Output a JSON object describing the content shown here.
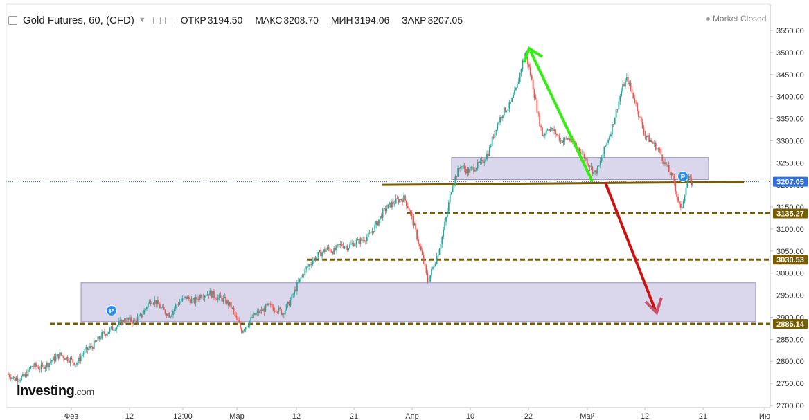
{
  "header": {
    "title": "Gold Futures, 60, (CFD)",
    "open_label": "ОТКР",
    "open_value": "3194.50",
    "high_label": "МАКС",
    "high_value": "3208.70",
    "low_label": "МИН",
    "low_value": "3194.06",
    "close_label": "ЗАКР",
    "close_value": "3207.05"
  },
  "status": {
    "market": "Market Closed"
  },
  "logo": {
    "name": "Investing",
    "suffix": ".com"
  },
  "price_tags": {
    "current": "3207.05",
    "level_3135": "3135.27",
    "level_3030": "3030.53",
    "level_2885": "2885.14"
  },
  "markers": {
    "pivot": "P"
  },
  "colors": {
    "up": "#26a69a",
    "down": "#ef5350",
    "zone": "#d7d2ea",
    "level": "#7a5c00",
    "arrow_up": "#33ee11",
    "arrow_down": "#cc1111",
    "tag_bg": "#7a5c00",
    "current_tag_bg": "#2f6fd6"
  },
  "chart_data": {
    "type": "candlestick",
    "yaxis_ticks": [
      "3550.00",
      "3500.00",
      "3450.00",
      "3400.00",
      "3350.00",
      "3300.00",
      "3250.00",
      "3200.00",
      "3150.00",
      "3100.00",
      "3050.00",
      "3000.00",
      "2950.00",
      "2900.00",
      "2850.00",
      "2800.00",
      "2750.00",
      "2700.00"
    ],
    "ylim": [
      2700,
      3550
    ],
    "xaxis_ticks": [
      "Фев",
      "12",
      "12:00",
      "Мар",
      "12",
      "21",
      "Апр",
      "10",
      "22",
      "Май",
      "12",
      "21",
      "Ию"
    ],
    "price_path": [
      [
        0,
        2770
      ],
      [
        0.3,
        2760
      ],
      [
        0.7,
        2765
      ],
      [
        1.0,
        2790
      ],
      [
        1.4,
        2785
      ],
      [
        1.8,
        2800
      ],
      [
        2.2,
        2815
      ],
      [
        2.6,
        2805
      ],
      [
        2.9,
        2795
      ],
      [
        3.2,
        2820
      ],
      [
        3.6,
        2835
      ],
      [
        4.0,
        2860
      ],
      [
        4.3,
        2870
      ],
      [
        4.6,
        2880
      ],
      [
        5.0,
        2895
      ],
      [
        5.4,
        2890
      ],
      [
        5.7,
        2905
      ],
      [
        5.9,
        2925
      ],
      [
        6.1,
        2940
      ],
      [
        6.3,
        2935
      ],
      [
        6.6,
        2915
      ],
      [
        6.9,
        2905
      ],
      [
        7.2,
        2930
      ],
      [
        7.6,
        2945
      ],
      [
        7.9,
        2935
      ],
      [
        8.2,
        2950
      ],
      [
        8.6,
        2955
      ],
      [
        8.9,
        2945
      ],
      [
        9.2,
        2940
      ],
      [
        9.5,
        2925
      ],
      [
        9.7,
        2900
      ],
      [
        9.95,
        2870
      ],
      [
        10.2,
        2885
      ],
      [
        10.5,
        2905
      ],
      [
        10.8,
        2915
      ],
      [
        11.1,
        2925
      ],
      [
        11.4,
        2920
      ],
      [
        11.7,
        2910
      ],
      [
        11.9,
        2925
      ],
      [
        12.1,
        2945
      ],
      [
        12.3,
        2970
      ],
      [
        12.5,
        2990
      ],
      [
        12.7,
        3010
      ],
      [
        13.0,
        3030
      ],
      [
        13.3,
        3045
      ],
      [
        13.6,
        3055
      ],
      [
        13.9,
        3050
      ],
      [
        14.2,
        3065
      ],
      [
        14.5,
        3060
      ],
      [
        14.8,
        3070
      ],
      [
        15.1,
        3075
      ],
      [
        15.4,
        3085
      ],
      [
        15.7,
        3110
      ],
      [
        16.0,
        3140
      ],
      [
        16.3,
        3155
      ],
      [
        16.6,
        3165
      ],
      [
        16.9,
        3170
      ],
      [
        17.1,
        3145
      ],
      [
        17.3,
        3110
      ],
      [
        17.5,
        3070
      ],
      [
        17.7,
        3030
      ],
      [
        17.9,
        2980
      ],
      [
        18.1,
        3010
      ],
      [
        18.3,
        3040
      ],
      [
        18.5,
        3080
      ],
      [
        18.7,
        3130
      ],
      [
        18.9,
        3190
      ],
      [
        19.1,
        3220
      ],
      [
        19.3,
        3245
      ],
      [
        19.6,
        3230
      ],
      [
        19.9,
        3240
      ],
      [
        20.2,
        3250
      ],
      [
        20.5,
        3275
      ],
      [
        20.8,
        3330
      ],
      [
        21.1,
        3365
      ],
      [
        21.4,
        3380
      ],
      [
        21.7,
        3420
      ],
      [
        21.9,
        3470
      ],
      [
        22.05,
        3500
      ],
      [
        22.2,
        3470
      ],
      [
        22.4,
        3420
      ],
      [
        22.6,
        3360
      ],
      [
        22.8,
        3310
      ],
      [
        23.0,
        3330
      ],
      [
        23.3,
        3320
      ],
      [
        23.6,
        3300
      ],
      [
        23.9,
        3305
      ],
      [
        24.2,
        3290
      ],
      [
        24.5,
        3270
      ],
      [
        24.8,
        3245
      ],
      [
        25.0,
        3225
      ],
      [
        25.2,
        3240
      ],
      [
        25.4,
        3275
      ],
      [
        25.7,
        3320
      ],
      [
        26.0,
        3380
      ],
      [
        26.2,
        3420
      ],
      [
        26.4,
        3440
      ],
      [
        26.6,
        3410
      ],
      [
        26.8,
        3380
      ],
      [
        27.0,
        3340
      ],
      [
        27.2,
        3310
      ],
      [
        27.5,
        3295
      ],
      [
        27.8,
        3275
      ],
      [
        28.0,
        3250
      ],
      [
        28.2,
        3230
      ],
      [
        28.4,
        3210
      ],
      [
        28.55,
        3170
      ],
      [
        28.7,
        3140
      ],
      [
        28.85,
        3180
      ],
      [
        29.0,
        3215
      ],
      [
        29.2,
        3200
      ]
    ],
    "horizontal_levels": [
      "3207.05",
      "3135.27",
      "3030.53",
      "2885.14"
    ],
    "zones": [
      {
        "from": 2890,
        "to": 2978
      },
      {
        "from": 3212,
        "to": 3262
      }
    ],
    "grid": false,
    "legend": "none"
  }
}
